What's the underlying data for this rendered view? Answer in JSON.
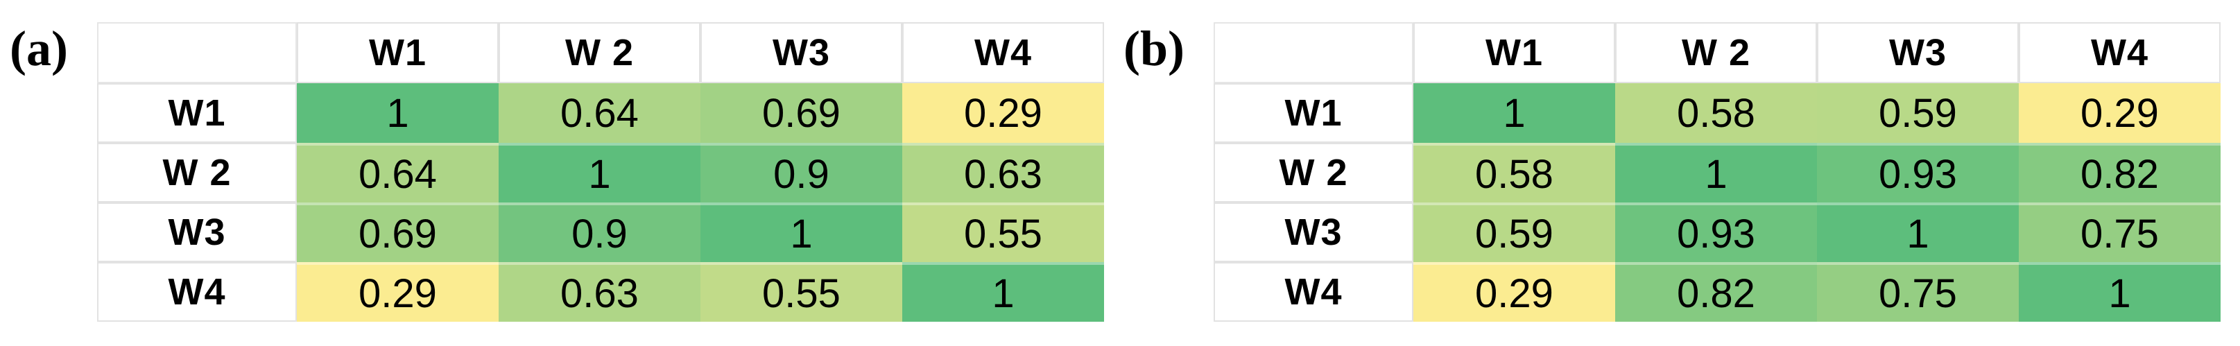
{
  "figure": {
    "panels": [
      {
        "label": "(a)"
      },
      {
        "label": "(b)"
      }
    ]
  },
  "colors": {
    "heat_max_green": "#5dbe7c",
    "heat_min_yellow": "#fbec91",
    "heat_domain": [
      0.29,
      1
    ],
    "cell_border": "#e2e2e2",
    "text": "#000000",
    "background": "#ffffff"
  },
  "chart_data": [
    {
      "type": "heatmap",
      "title": "(a)",
      "x_labels": [
        "W1",
        "W 2",
        "W3",
        "W4"
      ],
      "y_labels": [
        "W1",
        "W 2",
        "W3",
        "W4"
      ],
      "matrix": [
        [
          1,
          0.64,
          0.69,
          0.29
        ],
        [
          0.64,
          1,
          0.9,
          0.63
        ],
        [
          0.69,
          0.9,
          1,
          0.55
        ],
        [
          0.29,
          0.63,
          0.55,
          1
        ]
      ],
      "color_scale": {
        "min_value": 0.29,
        "min_color": "#fbec91",
        "max_value": 1,
        "max_color": "#5dbe7c"
      },
      "legend": "none",
      "grid": "off"
    },
    {
      "type": "heatmap",
      "title": "(b)",
      "x_labels": [
        "W1",
        "W 2",
        "W3",
        "W4"
      ],
      "y_labels": [
        "W1",
        "W 2",
        "W3",
        "W4"
      ],
      "matrix": [
        [
          1,
          0.58,
          0.59,
          0.29
        ],
        [
          0.58,
          1,
          0.93,
          0.82
        ],
        [
          0.59,
          0.93,
          1,
          0.75
        ],
        [
          0.29,
          0.82,
          0.75,
          1
        ]
      ],
      "color_scale": {
        "min_value": 0.29,
        "min_color": "#fbec91",
        "max_value": 1,
        "max_color": "#5dbe7c"
      },
      "legend": "none",
      "grid": "off"
    }
  ]
}
